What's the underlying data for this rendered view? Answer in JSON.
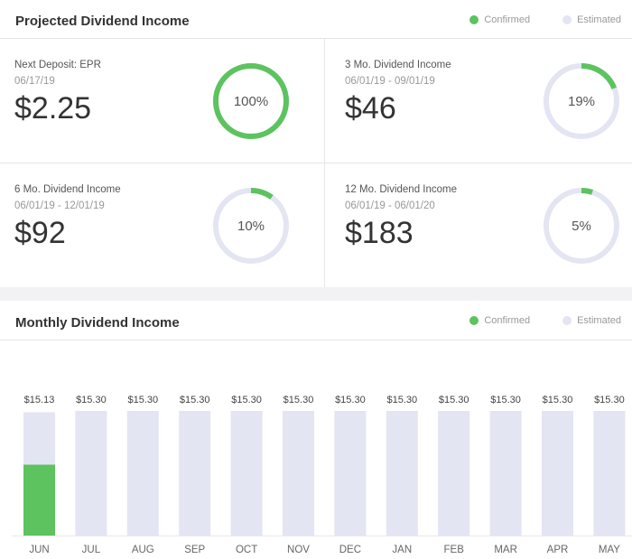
{
  "projected": {
    "title": "Projected Dividend Income",
    "legend": {
      "confirmed": "Confirmed",
      "estimated": "Estimated"
    },
    "cards": [
      {
        "label": "Next Deposit: EPR",
        "dates": "06/17/19",
        "amount": "$2.25",
        "percent_label": "100%",
        "percent": 100
      },
      {
        "label": "3 Mo. Dividend Income",
        "dates": "06/01/19 - 09/01/19",
        "amount": "$46",
        "percent_label": "19%",
        "percent": 19
      },
      {
        "label": "6 Mo. Dividend Income",
        "dates": "06/01/19 - 12/01/19",
        "amount": "$92",
        "percent_label": "10%",
        "percent": 10
      },
      {
        "label": "12 Mo. Dividend Income",
        "dates": "06/01/19 - 06/01/20",
        "amount": "$183",
        "percent_label": "5%",
        "percent": 5
      }
    ]
  },
  "monthly": {
    "title": "Monthly Dividend Income",
    "legend": {
      "confirmed": "Confirmed",
      "estimated": "Estimated"
    }
  },
  "colors": {
    "confirmed": "#5cc35f",
    "estimated": "#e3e5f3",
    "text": "#333333"
  },
  "chart_data": {
    "type": "bar",
    "stacked": true,
    "categories": [
      "JUN",
      "JUL",
      "AUG",
      "SEP",
      "OCT",
      "NOV",
      "DEC",
      "JAN",
      "FEB",
      "MAR",
      "APR",
      "MAY"
    ],
    "value_labels": [
      "$15.13",
      "$15.30",
      "$15.30",
      "$15.30",
      "$15.30",
      "$15.30",
      "$15.30",
      "$15.30",
      "$15.30",
      "$15.30",
      "$15.30",
      "$15.30"
    ],
    "series": [
      {
        "name": "Confirmed",
        "values": [
          8.7,
          0,
          0,
          0,
          0,
          0,
          0,
          0,
          0,
          0,
          0,
          0
        ]
      },
      {
        "name": "Estimated",
        "values": [
          6.43,
          15.3,
          15.3,
          15.3,
          15.3,
          15.3,
          15.3,
          15.3,
          15.3,
          15.3,
          15.3,
          15.3
        ]
      }
    ],
    "ylim": [
      0,
      15.3
    ],
    "grid": false,
    "legend_position": "top-right"
  }
}
